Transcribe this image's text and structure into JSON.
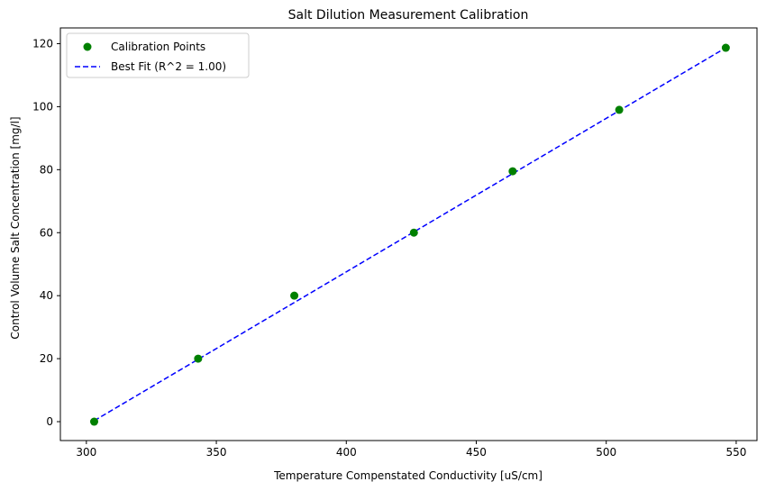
{
  "chart_data": {
    "type": "scatter",
    "title": "Salt Dilution Measurement Calibration",
    "xlabel": "Temperature Compenstated Conductivity [uS/cm]",
    "ylabel": "Control Volume Salt Concentration [mg/l]",
    "xlim": [
      290,
      558
    ],
    "ylim": [
      -6,
      125
    ],
    "xticks": [
      300,
      350,
      400,
      450,
      500,
      550
    ],
    "yticks": [
      0,
      20,
      40,
      60,
      80,
      100,
      120
    ],
    "grid": false,
    "legend_position": "top-left",
    "series": [
      {
        "name": "Calibration Points",
        "kind": "markers",
        "color": "#008000",
        "x": [
          303,
          343,
          380,
          426,
          464,
          505,
          546
        ],
        "y": [
          0,
          20,
          40,
          60,
          79.5,
          99,
          118.7
        ]
      },
      {
        "name": "Best Fit (R^2 = 1.00)",
        "kind": "dashed-line",
        "color": "#0000ff",
        "x": [
          303,
          546
        ],
        "y": [
          0.3,
          118.7
        ]
      }
    ]
  }
}
